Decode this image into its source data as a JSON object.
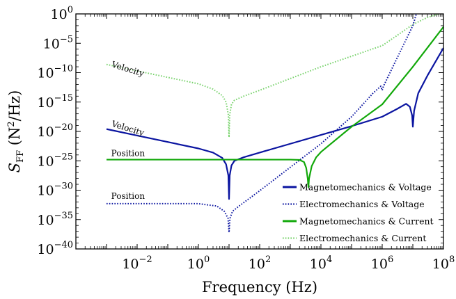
{
  "chart_data": {
    "type": "line",
    "xlabel": "Frequency (Hz)",
    "ylabel": "S_FF (N²/Hz)",
    "x_scale": "log",
    "y_scale": "log",
    "xlim": [
      0.0001,
      100000000
    ],
    "ylim": [
      1e-40,
      1
    ],
    "grid": false,
    "legend_position": "bottom-right",
    "x_ticks": [
      {
        "value": 0.01,
        "base": "10",
        "exp": "−2"
      },
      {
        "value": 1,
        "base": "10",
        "exp": "0"
      },
      {
        "value": 100,
        "base": "10",
        "exp": "2"
      },
      {
        "value": 10000,
        "base": "10",
        "exp": "4"
      },
      {
        "value": 1000000,
        "base": "10",
        "exp": "6"
      },
      {
        "value": 100000000,
        "base": "10",
        "exp": "8"
      }
    ],
    "y_ticks": [
      {
        "value": 1,
        "base": "10",
        "exp": "0"
      },
      {
        "value": 1e-05,
        "base": "10",
        "exp": "−5"
      },
      {
        "value": 1e-10,
        "base": "10",
        "exp": "−10"
      },
      {
        "value": 1e-15,
        "base": "10",
        "exp": "−15"
      },
      {
        "value": 1e-20,
        "base": "10",
        "exp": "−20"
      },
      {
        "value": 1e-25,
        "base": "10",
        "exp": "−25"
      },
      {
        "value": 1e-30,
        "base": "10",
        "exp": "−30"
      },
      {
        "value": 1e-35,
        "base": "10",
        "exp": "−35"
      },
      {
        "value": 1e-40,
        "base": "10",
        "exp": "−40"
      }
    ],
    "series": [
      {
        "name": "Magnetomechanics & Voltage",
        "color": "#0a14a0",
        "style": "solid",
        "points": [
          [
            0.001,
            -19.6
          ],
          [
            0.01,
            -20.7
          ],
          [
            0.1,
            -21.8
          ],
          [
            1,
            -22.9
          ],
          [
            3,
            -23.6
          ],
          [
            6,
            -24.5
          ],
          [
            8,
            -25.6
          ],
          [
            9.5,
            -27.5
          ],
          [
            10,
            -31.5
          ],
          [
            10.5,
            -27.5
          ],
          [
            12,
            -25.8
          ],
          [
            15,
            -25.0
          ],
          [
            30,
            -24.4
          ],
          [
            100,
            -23.6
          ],
          [
            1000,
            -22.1
          ],
          [
            10000,
            -20.6
          ],
          [
            100000,
            -19.1
          ],
          [
            1000000,
            -17.5
          ],
          [
            3000000,
            -16.2
          ],
          [
            6000000,
            -15.3
          ],
          [
            8000000,
            -15.8
          ],
          [
            9500000,
            -17.3
          ],
          [
            10000000,
            -19.2
          ],
          [
            11000000,
            -16.5
          ],
          [
            15000000,
            -13.5
          ],
          [
            30000000,
            -10.5
          ],
          [
            100000000,
            -5.8
          ]
        ]
      },
      {
        "name": "Electromechanics & Voltage",
        "color": "#0a14a0",
        "style": "dotted",
        "points": [
          [
            0.001,
            -32.3
          ],
          [
            0.1,
            -32.3
          ],
          [
            1,
            -32.3
          ],
          [
            4,
            -32.7
          ],
          [
            7,
            -33.6
          ],
          [
            9.3,
            -34.8
          ],
          [
            10,
            -37.2
          ],
          [
            10.7,
            -34.8
          ],
          [
            13,
            -33.6
          ],
          [
            20,
            -32.8
          ],
          [
            100,
            -30.1
          ],
          [
            1000,
            -26.1
          ],
          [
            10000,
            -22.1
          ],
          [
            100000,
            -17.5
          ],
          [
            500000,
            -13.5
          ],
          [
            900000,
            -12.3
          ],
          [
            1000000,
            -13.0
          ],
          [
            1100000,
            -12.3
          ],
          [
            2000000,
            -9.5
          ],
          [
            10000000,
            -2.0
          ],
          [
            13000000,
            0
          ]
        ]
      },
      {
        "name": "Magnetomechanics & Current",
        "color": "#12a80a",
        "style": "solid",
        "points": [
          [
            0.001,
            -24.8
          ],
          [
            1,
            -24.8
          ],
          [
            100,
            -24.8
          ],
          [
            1000,
            -24.8
          ],
          [
            2000,
            -24.85
          ],
          [
            2800,
            -25.2
          ],
          [
            3300,
            -26.2
          ],
          [
            3700,
            -28.0
          ],
          [
            3900,
            -29.5
          ],
          [
            4100,
            -28.0
          ],
          [
            5000,
            -25.9
          ],
          [
            7000,
            -24.4
          ],
          [
            10000,
            -23.5
          ],
          [
            100000,
            -19.2
          ],
          [
            1000000,
            -15.4
          ],
          [
            10000000,
            -9.0
          ],
          [
            100000000,
            -2.2
          ]
        ]
      },
      {
        "name": "Electromechanics & Current",
        "color": "#7ad36e",
        "style": "dotted",
        "points": [
          [
            0.001,
            -8.6
          ],
          [
            0.1,
            -10.8
          ],
          [
            1,
            -11.9
          ],
          [
            3,
            -12.8
          ],
          [
            6,
            -13.9
          ],
          [
            8,
            -15.0
          ],
          [
            9.5,
            -17.2
          ],
          [
            10,
            -21.0
          ],
          [
            10.5,
            -17.2
          ],
          [
            12,
            -15.4
          ],
          [
            15,
            -14.7
          ],
          [
            30,
            -14.0
          ],
          [
            100,
            -13.0
          ],
          [
            1000,
            -11.0
          ],
          [
            10000,
            -9.0
          ],
          [
            100000,
            -7.2
          ],
          [
            1000000,
            -5.4
          ],
          [
            3000000,
            -3.7
          ],
          [
            10000000,
            -1.8
          ],
          [
            30000000,
            -0.6
          ],
          [
            70000000,
            0
          ]
        ]
      }
    ],
    "annotations": [
      {
        "text": "Velocity",
        "x": 0.00115,
        "y": -9.0,
        "rotate": 17
      },
      {
        "text": "Velocity",
        "x": 0.00115,
        "y": -19.1,
        "rotate": 17
      },
      {
        "text": "Position",
        "x": 0.00115,
        "y": -24.2,
        "rotate": 0
      },
      {
        "text": "Position",
        "x": 0.00115,
        "y": -31.5,
        "rotate": 0
      }
    ]
  }
}
